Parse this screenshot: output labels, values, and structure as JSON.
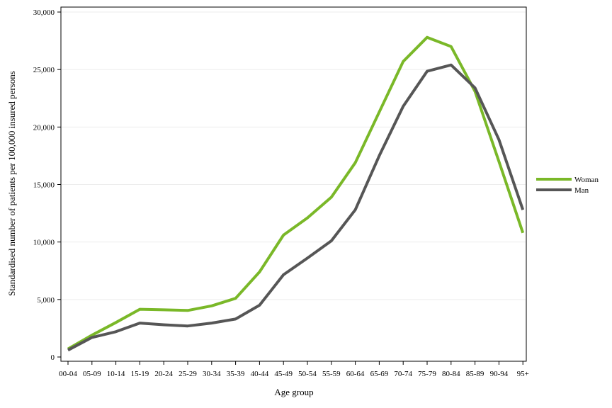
{
  "chart_data": {
    "type": "line",
    "title": "",
    "xlabel": "Age group",
    "ylabel": "Standardised number of patients per 100,000 insured persons",
    "categories": [
      "00-04",
      "05-09",
      "10-14",
      "15-19",
      "20-24",
      "25-29",
      "30-34",
      "35-39",
      "40-44",
      "45-49",
      "50-54",
      "55-59",
      "60-64",
      "65-69",
      "70-74",
      "75-79",
      "80-84",
      "85-89",
      "90-94",
      "95+"
    ],
    "yticks": [
      0,
      5000,
      10000,
      15000,
      20000,
      25000,
      30000
    ],
    "ytick_labels": [
      "0",
      "5,000",
      "10,000",
      "15,000",
      "20,000",
      "25,000",
      "30,000"
    ],
    "ylim": [
      0,
      30000
    ],
    "grid": "horizontal",
    "legend_position": "right",
    "series": [
      {
        "name": "Woman",
        "color": "#7ab828",
        "values": [
          700,
          1900,
          3000,
          4150,
          4100,
          4050,
          4450,
          5100,
          7400,
          10600,
          12100,
          13900,
          16900,
          21300,
          25700,
          27800,
          27000,
          23100,
          17000,
          10800
        ]
      },
      {
        "name": "Man",
        "color": "#565656",
        "values": [
          600,
          1700,
          2200,
          2950,
          2800,
          2700,
          2950,
          3300,
          4500,
          7150,
          8600,
          10100,
          12800,
          17500,
          21800,
          24850,
          25400,
          23400,
          18900,
          12800
        ]
      }
    ]
  }
}
